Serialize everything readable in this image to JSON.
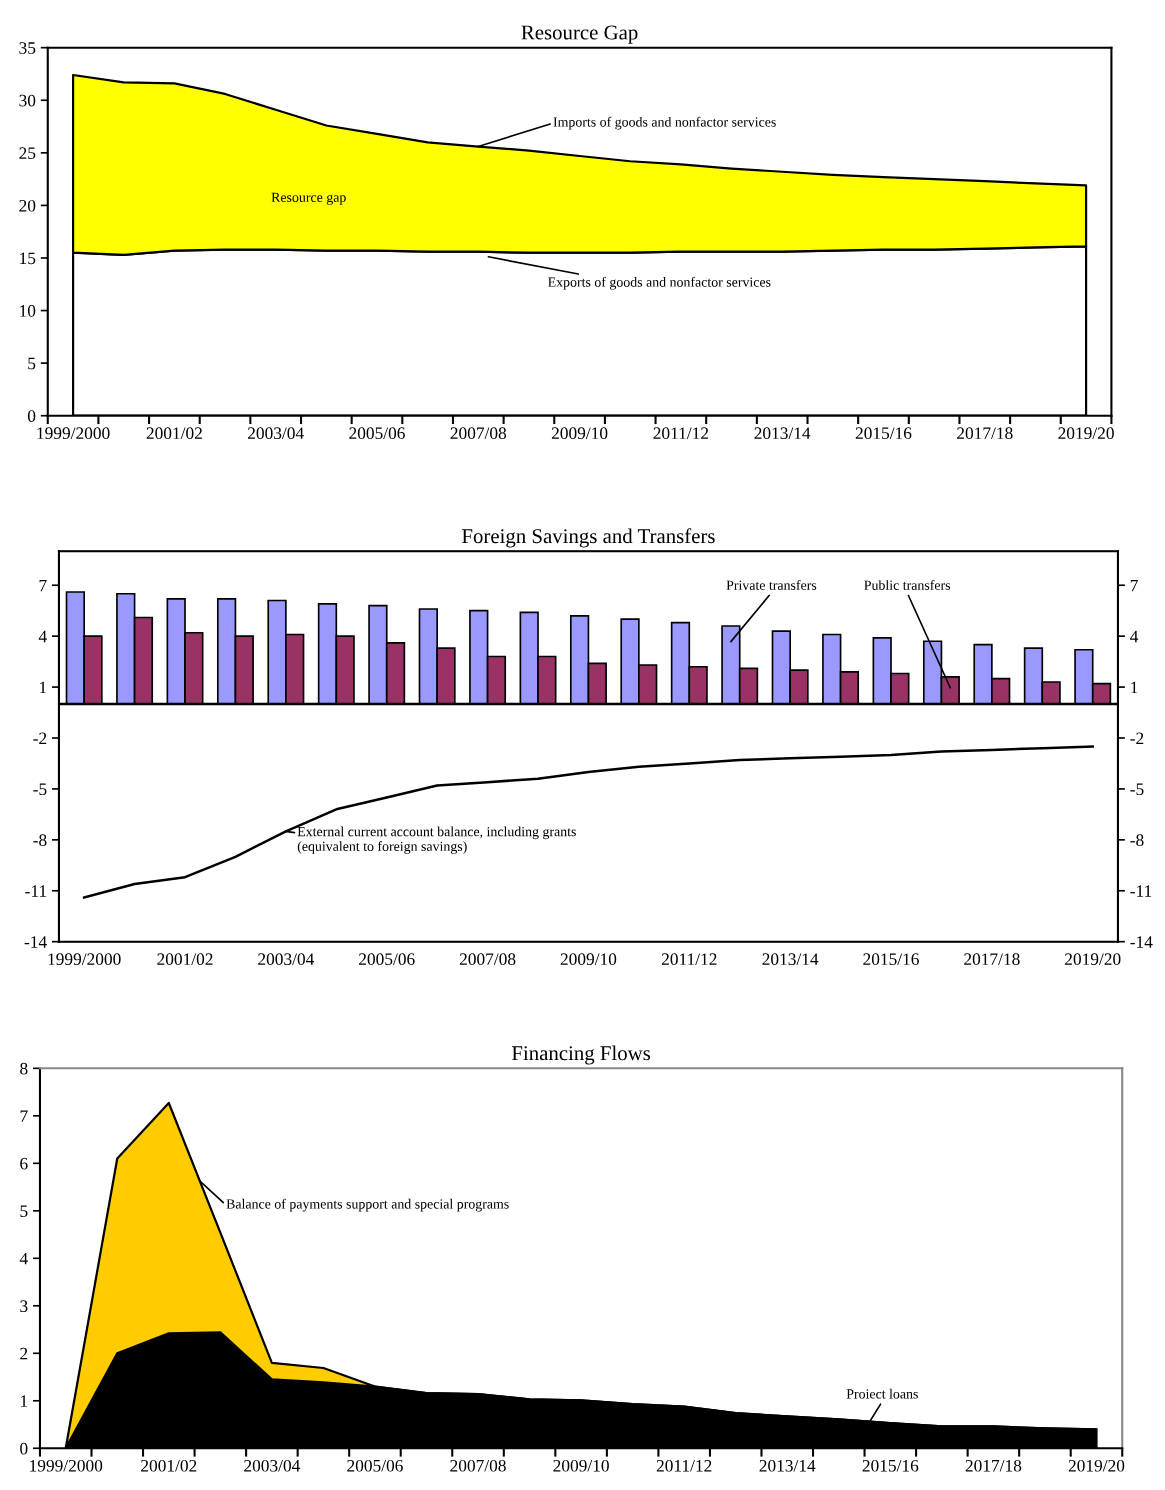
{
  "chart_data": [
    {
      "type": "area",
      "title": "Resource Gap",
      "stacked": true,
      "categories": [
        "1999/2000",
        null,
        "2001/02",
        null,
        "2003/04",
        null,
        "2005/06",
        null,
        "2007/08",
        null,
        "2009/10",
        null,
        "2011/12",
        null,
        "2013/14",
        null,
        "2015/16",
        null,
        "2017/18",
        null,
        "2019/20"
      ],
      "series": [
        {
          "name": "Exports of goods and nonfactor services",
          "color": "#ffffff",
          "values": [
            15.5,
            15.3,
            15.7,
            15.8,
            15.8,
            15.7,
            15.7,
            15.6,
            15.6,
            15.5,
            15.5,
            15.5,
            15.6,
            15.6,
            15.6,
            15.7,
            15.8,
            15.8,
            15.9,
            16.0,
            16.1
          ]
        },
        {
          "name": "Resource gap",
          "color": "#ffff00",
          "values": [
            16.9,
            16.4,
            15.9,
            14.8,
            13.3,
            11.9,
            11.1,
            10.4,
            10.0,
            9.7,
            9.2,
            8.7,
            8.3,
            7.9,
            7.6,
            7.2,
            6.9,
            6.7,
            6.4,
            6.1,
            5.8
          ]
        }
      ],
      "annotations": [
        {
          "text": "Imports of goods and nonfactor services",
          "x": "2007/08",
          "y": 25.6
        }
      ],
      "ylim": [
        0,
        35
      ],
      "yticks": [
        0,
        5,
        10,
        15,
        20,
        25,
        30,
        35
      ]
    },
    {
      "type": "bar",
      "title": "Foreign Savings and Transfers",
      "categories": [
        "1999/2000",
        null,
        "2001/02",
        null,
        "2003/04",
        null,
        "2005/06",
        null,
        "2007/08",
        null,
        "2009/10",
        null,
        "2011/12",
        null,
        "2013/14",
        null,
        "2015/16",
        null,
        "2017/18",
        null,
        "2019/20"
      ],
      "series": [
        {
          "name": "Private transfers",
          "color": "#9999ff",
          "values": [
            6.6,
            6.5,
            6.2,
            6.2,
            6.1,
            5.9,
            5.8,
            5.6,
            5.5,
            5.4,
            5.2,
            5.0,
            4.8,
            4.6,
            4.3,
            4.1,
            3.9,
            3.7,
            3.5,
            3.3,
            3.2
          ]
        },
        {
          "name": "Public transfers",
          "color": "#993366",
          "values": [
            4.0,
            5.1,
            4.2,
            4.0,
            4.1,
            4.0,
            3.6,
            3.3,
            2.8,
            2.8,
            2.4,
            2.3,
            2.2,
            2.1,
            2.0,
            1.9,
            1.8,
            1.6,
            1.5,
            1.3,
            1.2
          ]
        },
        {
          "name": "External current account balance, including grants\n(equivalent to foreign savings)",
          "type": "line",
          "color": "#000000",
          "values": [
            -11.4,
            -10.6,
            -10.2,
            -9.0,
            -7.5,
            -6.2,
            -5.5,
            -4.8,
            -4.6,
            -4.4,
            -4.0,
            -3.7,
            -3.5,
            -3.3,
            -3.2,
            -3.1,
            -3.0,
            -2.8,
            -2.7,
            -2.6,
            -2.5
          ]
        }
      ],
      "ref_lines": [
        {
          "axis": "y",
          "value": 0,
          "color": "#000000"
        }
      ],
      "ylim": [
        -14,
        9
      ],
      "yticks": [
        -14,
        -11,
        -8,
        -5,
        -2,
        1,
        4,
        7
      ],
      "y2lim": [
        -14,
        9
      ],
      "y2ticks": [
        -14,
        -11,
        -8,
        -5,
        -2,
        1,
        4,
        7
      ]
    },
    {
      "type": "area",
      "title": "Financing Flows",
      "stacked": true,
      "categories": [
        "1999/2000",
        null,
        "2001/02",
        null,
        "2003/04",
        null,
        "2005/06",
        null,
        "2007/08",
        null,
        "2009/10",
        null,
        "2011/12",
        null,
        "2013/14",
        null,
        "2015/16",
        null,
        "2017/18",
        null,
        "2019/20"
      ],
      "series": [
        {
          "name": "Proiect loans",
          "color": "#000000",
          "values": [
            0,
            2.0,
            2.42,
            2.44,
            1.45,
            1.39,
            1.3,
            1.16,
            1.14,
            1.03,
            1.01,
            0.93,
            0.88,
            0.74,
            0.67,
            0.61,
            0.53,
            0.46,
            0.46,
            0.42,
            0.4
          ]
        },
        {
          "name": "Balance of payments support and special programs",
          "color": "#ffcc00",
          "values": [
            0,
            4.1,
            4.85,
            2.1,
            0.35,
            0.3,
            0,
            0,
            0,
            0,
            0,
            0,
            0,
            0,
            0,
            0,
            0,
            0,
            0,
            0,
            0
          ]
        }
      ],
      "ylim": [
        0,
        8
      ],
      "yticks": [
        0,
        1,
        2,
        3,
        4,
        5,
        6,
        7,
        8
      ]
    }
  ]
}
